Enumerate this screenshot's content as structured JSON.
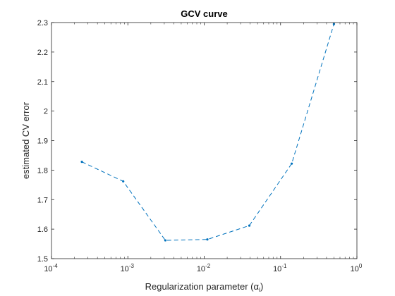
{
  "chart_data": {
    "type": "line",
    "title": "GCV curve",
    "xlabel_main": "Regularization parameter (",
    "xlabel_symbol": "α",
    "xlabel_subscript": "i",
    "xlabel_close": ")",
    "ylabel": "estimated CV error",
    "xscale": "log",
    "xlim": [
      0.0001,
      1
    ],
    "ylim": [
      1.5,
      2.3
    ],
    "x_ticks": [
      {
        "base": "10",
        "exp": "-4"
      },
      {
        "base": "10",
        "exp": "-3"
      },
      {
        "base": "10",
        "exp": "-2"
      },
      {
        "base": "10",
        "exp": "-1"
      },
      {
        "base": "10",
        "exp": "0"
      }
    ],
    "x_tick_values": [
      0.0001,
      0.001,
      0.01,
      0.1,
      1
    ],
    "y_ticks": [
      "1.5",
      "1.6",
      "1.7",
      "1.8",
      "1.9",
      "2",
      "2.1",
      "2.2",
      "2.3"
    ],
    "y_tick_values": [
      1.5,
      1.6,
      1.7,
      1.8,
      1.9,
      2.0,
      2.1,
      2.2,
      2.3
    ],
    "grid": false,
    "series": [
      {
        "line_style": "dashed",
        "marker": "point",
        "color": "#0072BD",
        "x": [
          0.00025,
          0.00087,
          0.0031,
          0.011,
          0.039,
          0.14,
          0.5
        ],
        "y": [
          1.828,
          1.762,
          1.562,
          1.565,
          1.612,
          1.822,
          2.295
        ]
      }
    ]
  }
}
